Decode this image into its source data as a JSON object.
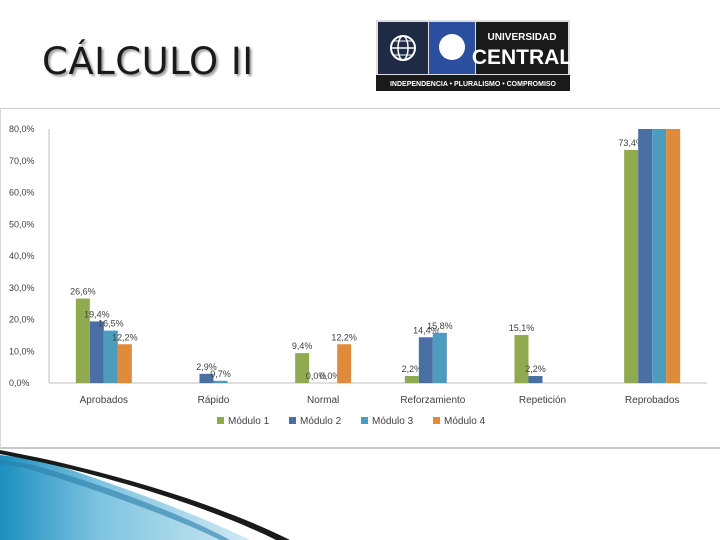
{
  "page": {
    "title": "CÁLCULO II"
  },
  "logo": {
    "line1": "UNIVERSIDAD",
    "line2": "CENTRAL",
    "tagline": "INDEPENDENCIA • PLURALISMO • COMPROMISO"
  },
  "chart_data": {
    "type": "bar",
    "categories": [
      "Aprobados",
      "Rápido",
      "Normal",
      "Reforzamiento",
      "Repetición",
      "Reprobados"
    ],
    "series": [
      {
        "name": "Módulo 1",
        "color": "#8faa4f",
        "values": [
          26.6,
          null,
          9.4,
          2.2,
          15.1,
          73.4
        ],
        "labels": [
          "26,6%",
          "",
          "9,4%",
          "2,2%",
          "15,1%",
          "73,4%"
        ]
      },
      {
        "name": "Módulo 2",
        "color": "#4a6fa5",
        "values": [
          19.4,
          2.9,
          0.0,
          14.4,
          2.2,
          80.0
        ],
        "labels": [
          "19,4%",
          "2,9%",
          "0,0%",
          "14,4%",
          "2,2%",
          ""
        ]
      },
      {
        "name": "Módulo 3",
        "color": "#4d9cbd",
        "values": [
          16.5,
          0.7,
          0.0,
          15.8,
          null,
          80.0
        ],
        "labels": [
          "16,5%",
          "0,7%",
          "0,0%",
          "15,8%",
          "",
          ""
        ]
      },
      {
        "name": "Módulo 4",
        "color": "#e08a3c",
        "values": [
          12.2,
          null,
          12.2,
          null,
          null,
          80.0
        ],
        "labels": [
          "12,2%",
          "",
          "12,2%",
          "",
          "",
          ""
        ]
      }
    ],
    "y_ticks": [
      "0,0%",
      "10,0%",
      "20,0%",
      "30,0%",
      "40,0%",
      "50,0%",
      "60,0%",
      "70,0%",
      "80,0%"
    ],
    "ylim": [
      0,
      80
    ],
    "legend_position": "bottom",
    "grid": false
  }
}
